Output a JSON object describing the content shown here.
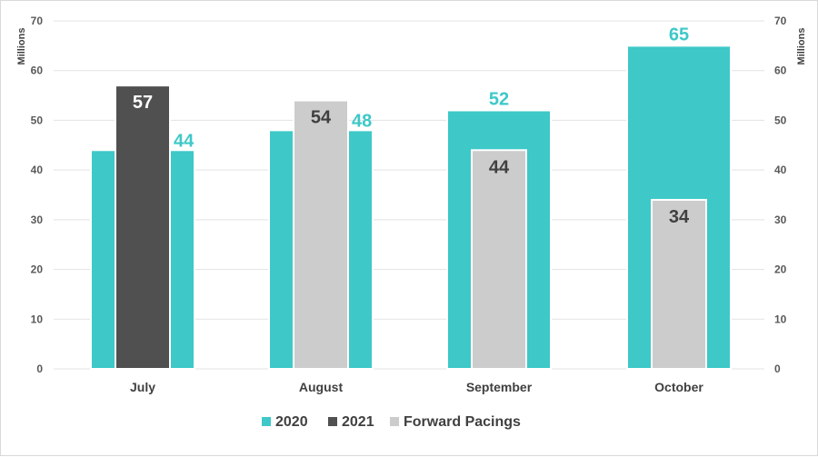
{
  "chart_data": {
    "type": "bar",
    "categories": [
      "July",
      "August",
      "September",
      "October"
    ],
    "series": [
      {
        "name": "2020",
        "color": "#3ec8c8",
        "values": [
          44,
          48,
          52,
          65
        ]
      },
      {
        "name": "2021",
        "color": "#505050",
        "values": [
          57,
          null,
          null,
          null
        ]
      },
      {
        "name": "Forward Pacings",
        "color": "#cccccc",
        "values": [
          null,
          54,
          44,
          34
        ]
      }
    ],
    "left_axis": {
      "label": "Millions",
      "ylim": [
        0,
        70
      ],
      "ticks": [
        0,
        10,
        20,
        30,
        40,
        50,
        60,
        70
      ]
    },
    "right_axis": {
      "label": "Millions",
      "ylim": [
        0,
        70
      ],
      "ticks": [
        0,
        10,
        20,
        30,
        40,
        50,
        60,
        70
      ]
    },
    "data_labels": true,
    "legend": {
      "position": "bottom"
    },
    "grid": true
  }
}
